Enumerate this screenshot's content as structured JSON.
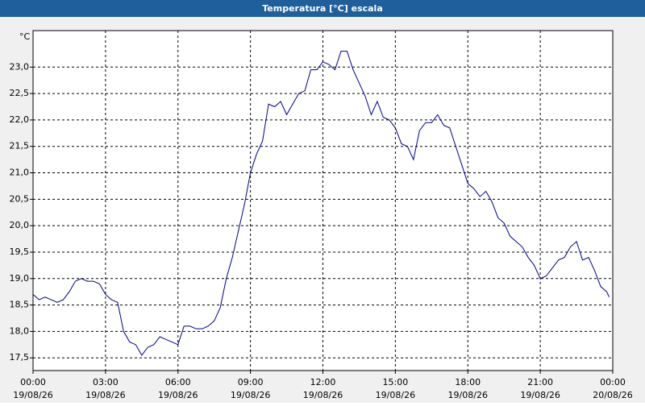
{
  "chart_data": {
    "type": "line",
    "title": "Temperatura [°C] escala",
    "y_label": "°C",
    "x": [
      0,
      0.25,
      0.5,
      0.75,
      1,
      1.25,
      1.5,
      1.75,
      2,
      2.25,
      2.5,
      2.75,
      3,
      3.25,
      3.5,
      3.75,
      4,
      4.25,
      4.5,
      4.75,
      5,
      5.25,
      5.5,
      5.75,
      6,
      6.25,
      6.5,
      6.75,
      7,
      7.25,
      7.5,
      7.75,
      8,
      8.25,
      8.5,
      8.75,
      9,
      9.25,
      9.5,
      9.75,
      10,
      10.25,
      10.5,
      10.75,
      11,
      11.25,
      11.5,
      11.75,
      12,
      12.25,
      12.5,
      12.75,
      13,
      13.25,
      13.5,
      13.75,
      14,
      14.25,
      14.5,
      14.75,
      15,
      15.25,
      15.5,
      15.75,
      16,
      16.25,
      16.5,
      16.75,
      17,
      17.25,
      17.5,
      17.75,
      18,
      18.25,
      18.5,
      18.75,
      19,
      19.25,
      19.5,
      19.75,
      20,
      20.25,
      20.5,
      20.75,
      21,
      21.25,
      21.5,
      21.75,
      22,
      22.25,
      22.5,
      22.75,
      23,
      23.25,
      23.5,
      23.75,
      23.85
    ],
    "values": [
      18.7,
      18.6,
      18.65,
      18.6,
      18.55,
      18.6,
      18.75,
      18.95,
      19.0,
      18.95,
      18.95,
      18.9,
      18.7,
      18.6,
      18.55,
      18.0,
      17.8,
      17.75,
      17.55,
      17.7,
      17.75,
      17.9,
      17.85,
      17.8,
      17.75,
      18.1,
      18.1,
      18.05,
      18.05,
      18.1,
      18.2,
      18.45,
      19.0,
      19.4,
      19.9,
      20.4,
      21.0,
      21.35,
      21.6,
      22.3,
      22.25,
      22.35,
      22.1,
      22.3,
      22.5,
      22.55,
      22.95,
      22.95,
      23.1,
      23.05,
      22.95,
      23.3,
      23.3,
      22.95,
      22.7,
      22.45,
      22.1,
      22.35,
      22.05,
      22.0,
      21.85,
      21.55,
      21.5,
      21.25,
      21.8,
      21.95,
      21.95,
      22.1,
      21.9,
      21.85,
      21.5,
      21.15,
      20.8,
      20.7,
      20.55,
      20.65,
      20.45,
      20.15,
      20.05,
      19.8,
      19.7,
      19.6,
      19.4,
      19.25,
      19.0,
      19.05,
      19.2,
      19.35,
      19.4,
      19.6,
      19.7,
      19.35,
      19.4,
      19.15,
      18.85,
      18.75,
      18.65
    ],
    "color": "#00008b",
    "xlim": [
      0,
      24
    ],
    "ylim": [
      17.26,
      23.69
    ],
    "xticks": [
      {
        "value": 0,
        "label": "00:00",
        "date": "19/08/26"
      },
      {
        "value": 3,
        "label": "03:00",
        "date": "19/08/26"
      },
      {
        "value": 6,
        "label": "06:00",
        "date": "19/08/26"
      },
      {
        "value": 9,
        "label": "09:00",
        "date": "19/08/26"
      },
      {
        "value": 12,
        "label": "12:00",
        "date": "19/08/26"
      },
      {
        "value": 15,
        "label": "15:00",
        "date": "19/08/26"
      },
      {
        "value": 18,
        "label": "18:00",
        "date": "19/08/26"
      },
      {
        "value": 21,
        "label": "21:00",
        "date": "19/08/26"
      },
      {
        "value": 24,
        "label": "00:00",
        "date": "20/08/26"
      }
    ],
    "yticks": [
      {
        "value": 17.5,
        "label": "17,5"
      },
      {
        "value": 18,
        "label": "18,0"
      },
      {
        "value": 18.5,
        "label": "18,5"
      },
      {
        "value": 19,
        "label": "19,0"
      },
      {
        "value": 19.5,
        "label": "19,5"
      },
      {
        "value": 20,
        "label": "20,0"
      },
      {
        "value": 20.5,
        "label": "20,5"
      },
      {
        "value": 21,
        "label": "21,0"
      },
      {
        "value": 21.5,
        "label": "21,5"
      },
      {
        "value": 22,
        "label": "22,0"
      },
      {
        "value": 22.5,
        "label": "22,5"
      },
      {
        "value": 23,
        "label": "23,0"
      }
    ],
    "grid": true
  }
}
